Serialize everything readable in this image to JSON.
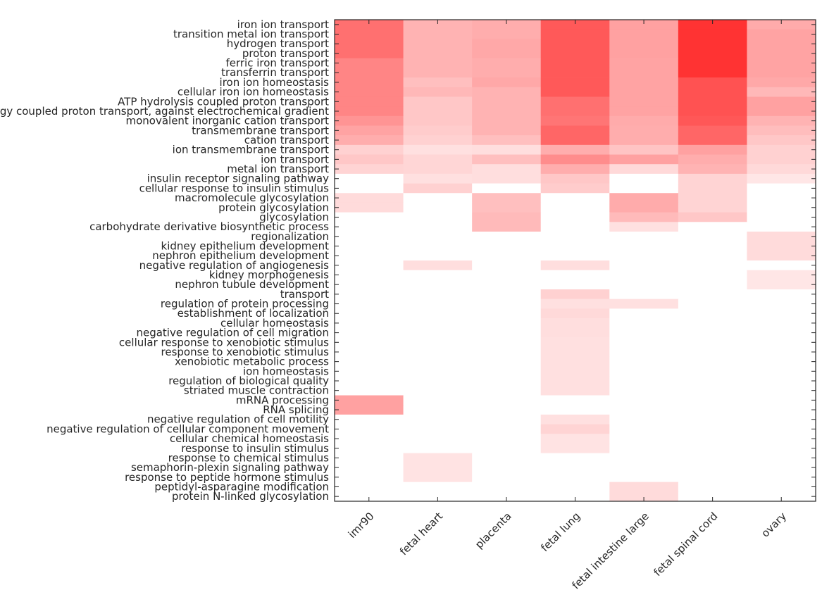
{
  "chart_data": {
    "type": "heatmap",
    "title": "",
    "xlabel": "",
    "ylabel": "",
    "colormap": {
      "low": "#ffffff",
      "high": "#ff0000"
    },
    "value_range": [
      0,
      1
    ],
    "grid": false,
    "legend": "none",
    "columns": [
      "imr90",
      "fetal heart",
      "placenta",
      "fetal lung",
      "fetal intestine large",
      "fetal spinal cord",
      "ovary"
    ],
    "rows": [
      "iron ion transport",
      "transition metal ion transport",
      "hydrogen transport",
      "proton transport",
      "ferric iron transport",
      "transferrin transport",
      "iron ion homeostasis",
      "cellular iron ion homeostasis",
      "ATP hydrolysis coupled proton transport",
      "energy coupled proton transport, against electrochemical gradient",
      "monovalent inorganic cation transport",
      "transmembrane transport",
      "cation transport",
      "ion transmembrane transport",
      "ion transport",
      "metal ion transport",
      "insulin receptor signaling pathway",
      "cellular response to insulin stimulus",
      "macromolecule glycosylation",
      "protein glycosylation",
      "glycosylation",
      "carbohydrate derivative biosynthetic process",
      "regionalization",
      "kidney epithelium development",
      "nephron epithelium development",
      "negative regulation of angiogenesis",
      "kidney morphogenesis",
      "nephron tubule development",
      "transport",
      "regulation of protein processing",
      "establishment of localization",
      "cellular homeostasis",
      "negative regulation of cell migration",
      "cellular response to xenobiotic stimulus",
      "response to xenobiotic stimulus",
      "xenobiotic metabolic process",
      "ion homeostasis",
      "regulation of biological quality",
      "striated muscle contraction",
      "mRNA processing",
      "RNA splicing",
      "negative regulation of cell motility",
      "negative regulation of cellular component movement",
      "cellular chemical homeostasis",
      "response to insulin stimulus",
      "response to chemical stimulus",
      "semaphorin-plexin signaling pathway",
      "response to peptide hormone stimulus",
      "peptidyl-asparagine modification",
      "protein N-linked glycosylation"
    ],
    "values": [
      [
        0.56,
        0.3,
        0.32,
        0.65,
        0.37,
        0.8,
        0.33
      ],
      [
        0.56,
        0.3,
        0.32,
        0.65,
        0.37,
        0.8,
        0.36
      ],
      [
        0.56,
        0.3,
        0.34,
        0.65,
        0.37,
        0.8,
        0.36
      ],
      [
        0.56,
        0.3,
        0.34,
        0.65,
        0.37,
        0.8,
        0.36
      ],
      [
        0.48,
        0.3,
        0.32,
        0.65,
        0.36,
        0.8,
        0.36
      ],
      [
        0.48,
        0.3,
        0.32,
        0.65,
        0.36,
        0.8,
        0.36
      ],
      [
        0.48,
        0.25,
        0.34,
        0.65,
        0.36,
        0.68,
        0.34
      ],
      [
        0.48,
        0.28,
        0.3,
        0.65,
        0.36,
        0.68,
        0.28
      ],
      [
        0.48,
        0.22,
        0.3,
        0.56,
        0.36,
        0.68,
        0.37
      ],
      [
        0.48,
        0.22,
        0.3,
        0.56,
        0.36,
        0.68,
        0.37
      ],
      [
        0.42,
        0.22,
        0.3,
        0.54,
        0.33,
        0.66,
        0.3
      ],
      [
        0.36,
        0.2,
        0.3,
        0.6,
        0.32,
        0.6,
        0.26
      ],
      [
        0.32,
        0.18,
        0.25,
        0.6,
        0.32,
        0.6,
        0.22
      ],
      [
        0.18,
        0.12,
        0.13,
        0.32,
        0.23,
        0.37,
        0.18
      ],
      [
        0.22,
        0.16,
        0.25,
        0.45,
        0.37,
        0.32,
        0.18
      ],
      [
        0.17,
        0.16,
        0.13,
        0.32,
        0.15,
        0.3,
        0.15
      ],
      [
        0.0,
        0.12,
        0.13,
        0.22,
        0.0,
        0.17,
        0.1
      ],
      [
        0.0,
        0.18,
        0.0,
        0.2,
        0.0,
        0.17,
        0.0
      ],
      [
        0.14,
        0.0,
        0.25,
        0.0,
        0.33,
        0.17,
        0.0
      ],
      [
        0.14,
        0.0,
        0.25,
        0.0,
        0.33,
        0.17,
        0.0
      ],
      [
        0.0,
        0.0,
        0.27,
        0.0,
        0.27,
        0.22,
        0.0
      ],
      [
        0.0,
        0.0,
        0.27,
        0.0,
        0.12,
        0.0,
        0.0
      ],
      [
        0.0,
        0.0,
        0.0,
        0.0,
        0.0,
        0.0,
        0.14
      ],
      [
        0.0,
        0.0,
        0.0,
        0.0,
        0.0,
        0.0,
        0.14
      ],
      [
        0.0,
        0.0,
        0.0,
        0.0,
        0.0,
        0.0,
        0.14
      ],
      [
        0.0,
        0.13,
        0.0,
        0.13,
        0.0,
        0.0,
        0.0
      ],
      [
        0.0,
        0.0,
        0.0,
        0.0,
        0.0,
        0.0,
        0.1
      ],
      [
        0.0,
        0.0,
        0.0,
        0.0,
        0.0,
        0.0,
        0.1
      ],
      [
        0.0,
        0.0,
        0.0,
        0.18,
        0.0,
        0.0,
        0.0
      ],
      [
        0.0,
        0.0,
        0.0,
        0.12,
        0.12,
        0.0,
        0.0
      ],
      [
        0.0,
        0.0,
        0.0,
        0.15,
        0.0,
        0.0,
        0.0
      ],
      [
        0.0,
        0.0,
        0.0,
        0.13,
        0.0,
        0.0,
        0.0
      ],
      [
        0.0,
        0.0,
        0.0,
        0.13,
        0.0,
        0.0,
        0.0
      ],
      [
        0.0,
        0.0,
        0.0,
        0.12,
        0.0,
        0.0,
        0.0
      ],
      [
        0.0,
        0.0,
        0.0,
        0.12,
        0.0,
        0.0,
        0.0
      ],
      [
        0.0,
        0.0,
        0.0,
        0.12,
        0.0,
        0.0,
        0.0
      ],
      [
        0.0,
        0.0,
        0.0,
        0.12,
        0.0,
        0.0,
        0.0
      ],
      [
        0.0,
        0.0,
        0.0,
        0.12,
        0.0,
        0.0,
        0.0
      ],
      [
        0.0,
        0.0,
        0.0,
        0.12,
        0.0,
        0.0,
        0.0
      ],
      [
        0.37,
        0.0,
        0.0,
        0.0,
        0.0,
        0.0,
        0.0
      ],
      [
        0.37,
        0.0,
        0.0,
        0.0,
        0.0,
        0.0,
        0.0
      ],
      [
        0.0,
        0.0,
        0.0,
        0.12,
        0.0,
        0.0,
        0.0
      ],
      [
        0.0,
        0.0,
        0.0,
        0.17,
        0.0,
        0.0,
        0.0
      ],
      [
        0.0,
        0.0,
        0.0,
        0.11,
        0.0,
        0.0,
        0.0
      ],
      [
        0.0,
        0.0,
        0.0,
        0.11,
        0.0,
        0.0,
        0.0
      ],
      [
        0.0,
        0.11,
        0.0,
        0.0,
        0.0,
        0.0,
        0.0
      ],
      [
        0.0,
        0.11,
        0.0,
        0.0,
        0.0,
        0.0,
        0.0
      ],
      [
        0.0,
        0.11,
        0.0,
        0.0,
        0.0,
        0.0,
        0.0
      ],
      [
        0.0,
        0.0,
        0.0,
        0.0,
        0.14,
        0.0,
        0.0
      ],
      [
        0.0,
        0.0,
        0.0,
        0.0,
        0.14,
        0.0,
        0.0
      ]
    ]
  }
}
